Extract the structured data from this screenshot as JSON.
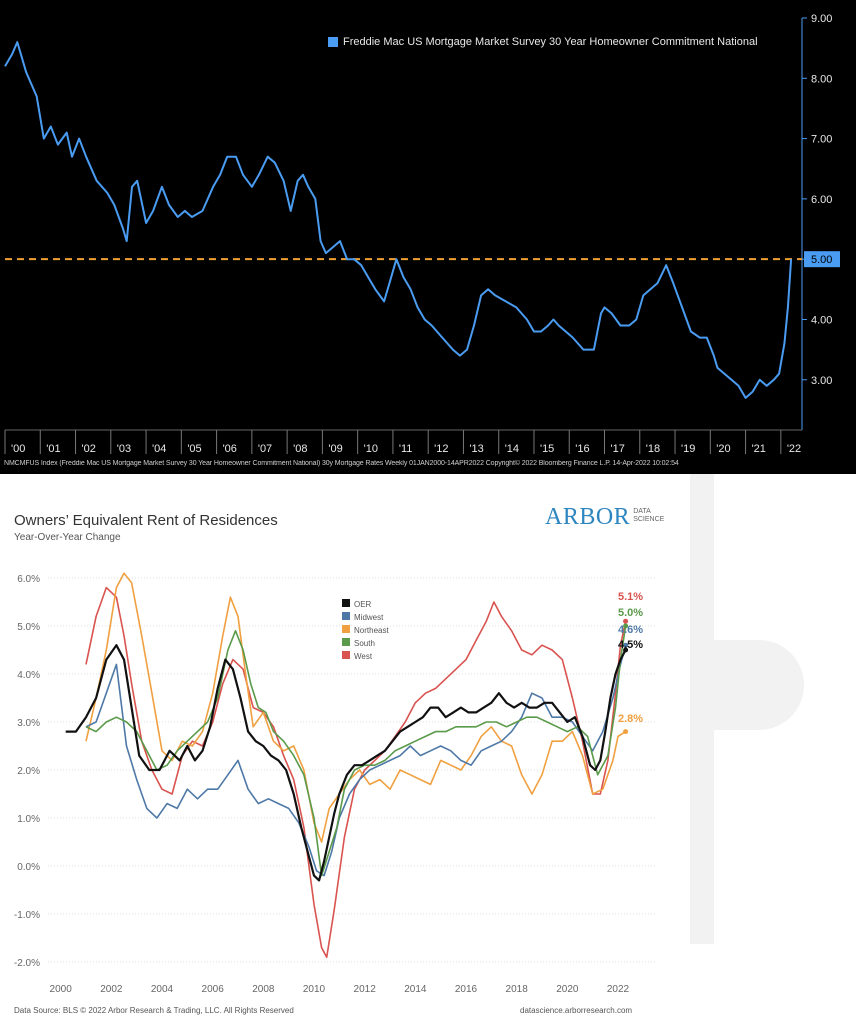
{
  "chart_data": [
    {
      "type": "line",
      "title": "",
      "legend_entries": [
        "Freddie Mac US Mortgage Market Survey 30 Year Homeowner Commitment National"
      ],
      "legend_placement": "top-right",
      "footer": "NMCMFUS Index (Freddie Mac US Mortgage Market Survey 30 Year Homeowner Commitment National) 30y Mortgage Rates  Weekly 01JAN2000-14APR2022 Copyright© 2022 Bloomberg Finance L.P.  14-Apr-2022 10:02:54",
      "x_tick_labels": [
        "'00",
        "'01",
        "'02",
        "'03",
        "'04",
        "'05",
        "'06",
        "'07",
        "'08",
        "'09",
        "'10",
        "'11",
        "'12",
        "'13",
        "'14",
        "'15",
        "'16",
        "'17",
        "'18",
        "'19",
        "'20",
        "'21",
        "'22"
      ],
      "y_tick_labels": [
        "3.00",
        "4.00",
        "5.00",
        "6.00",
        "7.00",
        "8.00",
        "9.00"
      ],
      "ylim": [
        2.2,
        9.0
      ],
      "reference_line": {
        "y": 5.0,
        "label": "5.00",
        "color": "#f0a030"
      },
      "series": [
        {
          "name": "Freddie Mac US Mortgage Market Survey 30 Year Homeowner Commitment National",
          "color": "#4a9cf2",
          "x": [
            2000.0,
            2000.2,
            2000.35,
            2000.6,
            2000.9,
            2001.1,
            2001.3,
            2001.5,
            2001.75,
            2001.9,
            2002.1,
            2002.3,
            2002.6,
            2002.9,
            2003.1,
            2003.35,
            2003.45,
            2003.6,
            2003.75,
            2004.0,
            2004.2,
            2004.45,
            2004.65,
            2004.9,
            2005.1,
            2005.3,
            2005.6,
            2005.9,
            2006.1,
            2006.3,
            2006.55,
            2006.75,
            2007.0,
            2007.2,
            2007.45,
            2007.65,
            2007.9,
            2008.1,
            2008.3,
            2008.45,
            2008.6,
            2008.8,
            2008.95,
            2009.1,
            2009.3,
            2009.5,
            2009.7,
            2009.9,
            2010.1,
            2010.3,
            2010.5,
            2010.75,
            2010.9,
            2011.1,
            2011.3,
            2011.5,
            2011.7,
            2011.9,
            2012.1,
            2012.4,
            2012.7,
            2012.9,
            2013.1,
            2013.3,
            2013.5,
            2013.7,
            2013.9,
            2014.2,
            2014.5,
            2014.8,
            2015.0,
            2015.2,
            2015.4,
            2015.55,
            2015.7,
            2015.9,
            2016.1,
            2016.4,
            2016.7,
            2016.9,
            2017.0,
            2017.2,
            2017.45,
            2017.7,
            2017.9,
            2018.1,
            2018.3,
            2018.5,
            2018.75,
            2018.95,
            2019.2,
            2019.45,
            2019.7,
            2019.9,
            2020.1,
            2020.2,
            2020.4,
            2020.6,
            2020.8,
            2021.0,
            2021.2,
            2021.4,
            2021.6,
            2021.8,
            2021.95,
            2022.1,
            2022.2,
            2022.29
          ],
          "y": [
            8.2,
            8.4,
            8.6,
            8.1,
            7.7,
            7.0,
            7.2,
            6.9,
            7.1,
            6.7,
            7.0,
            6.7,
            6.3,
            6.1,
            5.9,
            5.5,
            5.3,
            6.2,
            6.3,
            5.6,
            5.8,
            6.2,
            5.9,
            5.7,
            5.8,
            5.7,
            5.8,
            6.2,
            6.4,
            6.7,
            6.7,
            6.4,
            6.2,
            6.4,
            6.7,
            6.6,
            6.3,
            5.8,
            6.3,
            6.4,
            6.2,
            6.0,
            5.3,
            5.1,
            5.2,
            5.3,
            5.0,
            5.0,
            4.9,
            4.7,
            4.5,
            4.3,
            4.6,
            5.0,
            4.7,
            4.5,
            4.2,
            4.0,
            3.9,
            3.7,
            3.5,
            3.4,
            3.5,
            3.9,
            4.4,
            4.5,
            4.4,
            4.3,
            4.2,
            4.0,
            3.8,
            3.8,
            3.9,
            4.0,
            3.9,
            3.8,
            3.7,
            3.5,
            3.5,
            4.1,
            4.2,
            4.1,
            3.9,
            3.9,
            4.0,
            4.4,
            4.5,
            4.6,
            4.9,
            4.6,
            4.2,
            3.8,
            3.7,
            3.7,
            3.4,
            3.2,
            3.1,
            3.0,
            2.9,
            2.7,
            2.8,
            3.0,
            2.9,
            3.0,
            3.1,
            3.6,
            4.2,
            5.0
          ]
        }
      ]
    },
    {
      "type": "line",
      "title": "Owners’ Equivalent Rent of Residences",
      "subtitle": "Year-Over-Year Change",
      "xlabel": "",
      "ylabel": "",
      "x_tick_labels": [
        "2000",
        "2002",
        "2004",
        "2006",
        "2008",
        "2010",
        "2012",
        "2014",
        "2016",
        "2018",
        "2020",
        "2022"
      ],
      "y_tick_labels": [
        "-2.0%",
        "-1.0%",
        "0.0%",
        "1.0%",
        "2.0%",
        "3.0%",
        "4.0%",
        "5.0%",
        "6.0%"
      ],
      "ylim": [
        -2.0,
        6.0
      ],
      "xlim": [
        1999.5,
        2023.5
      ],
      "grid": true,
      "legend_placement": "center",
      "source": "Data Source: BLS © 2022 Arbor Research & Trading, LLC. All Rights Reserved",
      "url": "datascience.arborresearch.com",
      "end_labels": [
        {
          "label": "5.1%",
          "color": "#d9534f",
          "value": 5.1
        },
        {
          "label": "5.0%",
          "color": "#5a9a4a",
          "value": 5.0
        },
        {
          "label": "4.6%",
          "color": "#4e79a7",
          "value": 4.6
        },
        {
          "label": "4.5%",
          "color": "#111111",
          "value": 4.5
        },
        {
          "label": "2.8%",
          "color": "#f0a040",
          "value": 2.8
        }
      ],
      "series": [
        {
          "name": "OER",
          "color": "#111111",
          "x": [
            2000.2,
            2000.6,
            2001.0,
            2001.4,
            2001.8,
            2002.2,
            2002.5,
            2002.8,
            2003.1,
            2003.5,
            2003.9,
            2004.3,
            2004.7,
            2005.0,
            2005.3,
            2005.6,
            2005.9,
            2006.2,
            2006.5,
            2006.8,
            2007.1,
            2007.4,
            2007.7,
            2008.0,
            2008.3,
            2008.6,
            2008.9,
            2009.2,
            2009.5,
            2009.8,
            2010.0,
            2010.2,
            2010.4,
            2010.6,
            2010.8,
            2011.0,
            2011.3,
            2011.6,
            2011.9,
            2012.2,
            2012.5,
            2012.8,
            2013.1,
            2013.4,
            2013.7,
            2014.0,
            2014.3,
            2014.6,
            2014.9,
            2015.2,
            2015.5,
            2015.8,
            2016.1,
            2016.4,
            2016.7,
            2017.0,
            2017.3,
            2017.6,
            2017.9,
            2018.2,
            2018.5,
            2018.8,
            2019.1,
            2019.4,
            2019.7,
            2020.0,
            2020.3,
            2020.6,
            2020.9,
            2021.1,
            2021.3,
            2021.5,
            2021.7,
            2021.9,
            2022.1,
            2022.3
          ],
          "y": [
            2.8,
            2.8,
            3.1,
            3.5,
            4.3,
            4.6,
            4.3,
            3.3,
            2.3,
            2.0,
            2.0,
            2.4,
            2.2,
            2.5,
            2.2,
            2.4,
            2.9,
            3.7,
            4.3,
            4.1,
            3.5,
            2.8,
            2.6,
            2.5,
            2.3,
            2.2,
            2.0,
            1.5,
            0.8,
            0.2,
            -0.2,
            -0.3,
            0.1,
            0.6,
            1.1,
            1.5,
            1.9,
            2.1,
            2.1,
            2.2,
            2.3,
            2.4,
            2.6,
            2.8,
            2.9,
            3.0,
            3.1,
            3.3,
            3.3,
            3.1,
            3.2,
            3.3,
            3.2,
            3.2,
            3.3,
            3.4,
            3.6,
            3.4,
            3.3,
            3.4,
            3.3,
            3.3,
            3.4,
            3.4,
            3.2,
            3.0,
            3.1,
            2.7,
            2.1,
            2.0,
            2.2,
            2.8,
            3.5,
            4.0,
            4.3,
            4.5
          ]
        },
        {
          "name": "Midwest",
          "color": "#4e79a7",
          "x": [
            2001.0,
            2001.4,
            2001.8,
            2002.2,
            2002.6,
            2003.0,
            2003.4,
            2003.8,
            2004.2,
            2004.6,
            2005.0,
            2005.4,
            2005.8,
            2006.2,
            2006.6,
            2007.0,
            2007.4,
            2007.8,
            2008.2,
            2008.6,
            2009.0,
            2009.4,
            2009.8,
            2010.1,
            2010.4,
            2010.7,
            2011.0,
            2011.4,
            2011.8,
            2012.2,
            2012.6,
            2013.0,
            2013.4,
            2013.8,
            2014.2,
            2014.6,
            2015.0,
            2015.4,
            2015.8,
            2016.2,
            2016.6,
            2017.0,
            2017.4,
            2017.8,
            2018.2,
            2018.6,
            2019.0,
            2019.4,
            2019.8,
            2020.2,
            2020.6,
            2021.0,
            2021.4,
            2021.8,
            2022.1,
            2022.3
          ],
          "y": [
            2.9,
            3.0,
            3.6,
            4.2,
            2.5,
            1.8,
            1.2,
            1.0,
            1.3,
            1.2,
            1.6,
            1.4,
            1.6,
            1.6,
            1.9,
            2.2,
            1.6,
            1.3,
            1.4,
            1.3,
            1.2,
            0.9,
            0.4,
            -0.1,
            -0.2,
            0.3,
            1.0,
            1.5,
            1.8,
            2.0,
            2.1,
            2.2,
            2.3,
            2.5,
            2.3,
            2.4,
            2.5,
            2.4,
            2.2,
            2.1,
            2.4,
            2.5,
            2.6,
            2.8,
            3.1,
            3.6,
            3.5,
            3.1,
            3.1,
            3.0,
            2.7,
            2.4,
            2.8,
            3.5,
            4.2,
            4.6
          ]
        },
        {
          "name": "Northeast",
          "color": "#f0a040",
          "x": [
            2001.0,
            2001.4,
            2001.8,
            2002.2,
            2002.5,
            2002.8,
            2003.2,
            2003.6,
            2004.0,
            2004.4,
            2004.8,
            2005.2,
            2005.6,
            2006.0,
            2006.4,
            2006.7,
            2007.0,
            2007.3,
            2007.6,
            2008.0,
            2008.4,
            2008.8,
            2009.2,
            2009.6,
            2010.0,
            2010.3,
            2010.6,
            2011.0,
            2011.4,
            2011.8,
            2012.2,
            2012.6,
            2013.0,
            2013.4,
            2013.8,
            2014.2,
            2014.6,
            2015.0,
            2015.4,
            2015.8,
            2016.2,
            2016.6,
            2017.0,
            2017.4,
            2017.8,
            2018.2,
            2018.6,
            2019.0,
            2019.4,
            2019.8,
            2020.2,
            2020.6,
            2021.0,
            2021.4,
            2021.8,
            2022.0,
            2022.3
          ],
          "y": [
            2.6,
            3.5,
            4.5,
            5.8,
            6.1,
            5.9,
            4.8,
            3.6,
            2.4,
            2.2,
            2.6,
            2.5,
            2.8,
            3.6,
            4.8,
            5.6,
            5.2,
            4.0,
            2.9,
            3.2,
            2.6,
            2.4,
            2.5,
            2.0,
            0.9,
            0.5,
            1.2,
            1.5,
            1.8,
            2.0,
            1.7,
            1.8,
            1.6,
            2.0,
            1.9,
            1.8,
            1.7,
            2.2,
            2.1,
            2.0,
            2.3,
            2.7,
            2.9,
            2.6,
            2.5,
            1.9,
            1.5,
            1.9,
            2.6,
            2.6,
            2.8,
            2.3,
            1.5,
            1.6,
            2.2,
            2.7,
            2.8
          ]
        },
        {
          "name": "South",
          "color": "#5a9a4a",
          "x": [
            2001.0,
            2001.4,
            2001.8,
            2002.2,
            2002.6,
            2003.0,
            2003.4,
            2003.8,
            2004.2,
            2004.6,
            2005.0,
            2005.4,
            2005.8,
            2006.2,
            2006.6,
            2006.9,
            2007.2,
            2007.5,
            2007.8,
            2008.1,
            2008.4,
            2008.8,
            2009.2,
            2009.6,
            2010.0,
            2010.3,
            2010.6,
            2010.9,
            2011.2,
            2011.6,
            2012.0,
            2012.4,
            2012.8,
            2013.2,
            2013.6,
            2014.0,
            2014.4,
            2014.8,
            2015.2,
            2015.6,
            2016.0,
            2016.4,
            2016.8,
            2017.2,
            2017.6,
            2018.0,
            2018.4,
            2018.8,
            2019.2,
            2019.6,
            2020.0,
            2020.4,
            2020.8,
            2021.2,
            2021.6,
            2021.9,
            2022.1,
            2022.3
          ],
          "y": [
            2.9,
            2.8,
            3.0,
            3.1,
            3.0,
            2.8,
            2.4,
            2.0,
            2.1,
            2.4,
            2.6,
            2.8,
            3.0,
            3.5,
            4.5,
            4.9,
            4.5,
            3.8,
            3.3,
            3.2,
            2.8,
            2.6,
            2.3,
            1.9,
            1.0,
            -0.2,
            0.3,
            0.8,
            1.6,
            2.0,
            2.1,
            2.1,
            2.2,
            2.4,
            2.5,
            2.6,
            2.7,
            2.8,
            2.8,
            2.9,
            2.9,
            2.9,
            3.0,
            3.0,
            2.9,
            3.0,
            3.1,
            3.1,
            3.0,
            2.9,
            2.8,
            2.9,
            2.7,
            1.9,
            2.3,
            3.3,
            4.3,
            5.0
          ]
        },
        {
          "name": "West",
          "color": "#d9534f",
          "x": [
            2001.0,
            2001.4,
            2001.8,
            2002.2,
            2002.5,
            2002.8,
            2003.2,
            2003.6,
            2004.0,
            2004.4,
            2004.8,
            2005.2,
            2005.6,
            2006.0,
            2006.4,
            2006.8,
            2007.2,
            2007.6,
            2008.0,
            2008.4,
            2008.8,
            2009.2,
            2009.6,
            2010.0,
            2010.3,
            2010.5,
            2010.8,
            2011.2,
            2011.6,
            2012.0,
            2012.4,
            2012.8,
            2013.2,
            2013.6,
            2014.0,
            2014.4,
            2014.8,
            2015.2,
            2015.6,
            2016.0,
            2016.4,
            2016.8,
            2017.1,
            2017.4,
            2017.8,
            2018.2,
            2018.6,
            2019.0,
            2019.4,
            2019.8,
            2020.2,
            2020.6,
            2021.0,
            2021.3,
            2021.6,
            2021.9,
            2022.1,
            2022.3
          ],
          "y": [
            4.2,
            5.2,
            5.8,
            5.6,
            4.8,
            3.8,
            2.6,
            2.0,
            1.6,
            1.5,
            2.3,
            2.6,
            2.5,
            3.0,
            3.8,
            4.3,
            4.1,
            3.3,
            3.2,
            2.9,
            2.3,
            1.8,
            0.8,
            -0.8,
            -1.7,
            -1.9,
            -0.9,
            0.6,
            1.6,
            2.0,
            2.2,
            2.4,
            2.7,
            3.0,
            3.4,
            3.6,
            3.7,
            3.9,
            4.1,
            4.3,
            4.7,
            5.1,
            5.5,
            5.2,
            4.9,
            4.5,
            4.4,
            4.6,
            4.5,
            4.3,
            3.5,
            2.6,
            1.5,
            1.5,
            2.2,
            3.6,
            4.6,
            5.1
          ]
        }
      ]
    }
  ]
}
